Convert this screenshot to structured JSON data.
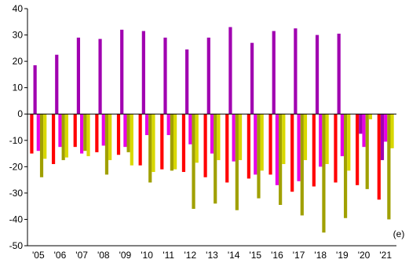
{
  "chart_data": {
    "type": "bar",
    "title": "",
    "xlabel": "",
    "ylabel": "",
    "note": "(e)",
    "ylim": [
      -50,
      40
    ],
    "yticks": [
      40,
      30,
      20,
      10,
      0,
      -10,
      -20,
      -30,
      -40,
      -50
    ],
    "categories": [
      "'05",
      "'06",
      "'07",
      "'08",
      "'09",
      "'10",
      "'11",
      "'12",
      "'13",
      "'14",
      "'15",
      "'16",
      "'17",
      "'18",
      "'19",
      "'20",
      "'21"
    ],
    "grid": false,
    "legend": "none",
    "series": [
      {
        "color": "#ff0000",
        "values": [
          -15,
          -19,
          -12.5,
          -14.5,
          -15.5,
          -19.5,
          -21,
          -22,
          -24,
          -26,
          -24.5,
          -23,
          -29.5,
          -27.5,
          -26,
          -27,
          -32.5
        ]
      },
      {
        "color": "#a000b0",
        "values": [
          18.5,
          22.5,
          29,
          28.5,
          32,
          31.5,
          29,
          24.5,
          29,
          33,
          27,
          31.5,
          32.5,
          30,
          30.5,
          -7.5,
          -17.5
        ]
      },
      {
        "color": "#e600e6",
        "values": [
          -14,
          -12.5,
          -15,
          -12,
          -12.5,
          -8,
          -8,
          -11.5,
          -15,
          -18,
          -23,
          -27,
          -25.5,
          -20,
          -16,
          -12.5,
          -10.5
        ]
      },
      {
        "color": "#a0a000",
        "values": [
          -24,
          -17.5,
          -14,
          -23,
          -14.5,
          -26,
          -21.5,
          -36,
          -34,
          -36.5,
          -32,
          -34.5,
          -38.5,
          -45,
          -39.5,
          -28.5,
          -40
        ]
      },
      {
        "color": "#d8d800",
        "values": [
          -17,
          -16.5,
          -16,
          -17.5,
          -19.5,
          -22,
          -21,
          -18.5,
          -17.5,
          -17.5,
          -21.5,
          -19,
          -17.5,
          -19,
          -21.5,
          -2,
          -13
        ]
      }
    ]
  }
}
